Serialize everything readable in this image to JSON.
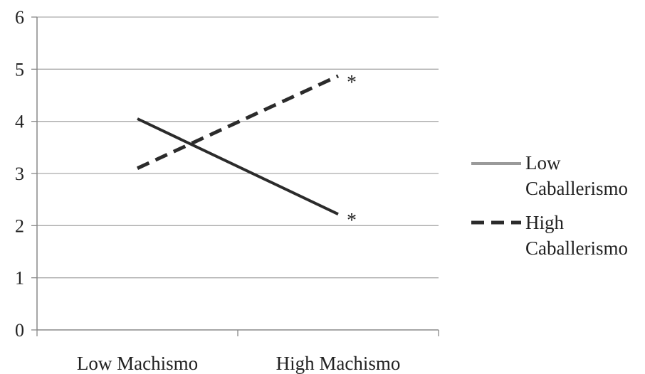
{
  "chart_data": {
    "type": "line",
    "categories": [
      "Low Machismo",
      "High Machismo"
    ],
    "series": [
      {
        "name": "Low Caballerismo",
        "values": [
          4.05,
          2.22
        ],
        "annotations": [
          "",
          "*"
        ]
      },
      {
        "name": "High Caballerismo",
        "values": [
          3.1,
          4.87
        ],
        "annotations": [
          "",
          "*"
        ]
      }
    ],
    "legend_labels": [
      {
        "line1": "Low",
        "line2": "Caballerismo"
      },
      {
        "line1": "High",
        "line2": "Caballerismo"
      }
    ],
    "yticks": [
      "0",
      "1",
      "2",
      "3",
      "4",
      "5",
      "6"
    ],
    "ylim": [
      0,
      6
    ],
    "grid": true,
    "legend_position": "right",
    "title": "",
    "xlabel": "",
    "ylabel": "",
    "colors": {
      "gridline": "#aaaaaa",
      "axis": "#888888",
      "line": "#2b2b2b",
      "legend_solid": "#9a9a9a",
      "legend_dashed": "#2b2b2b"
    }
  }
}
